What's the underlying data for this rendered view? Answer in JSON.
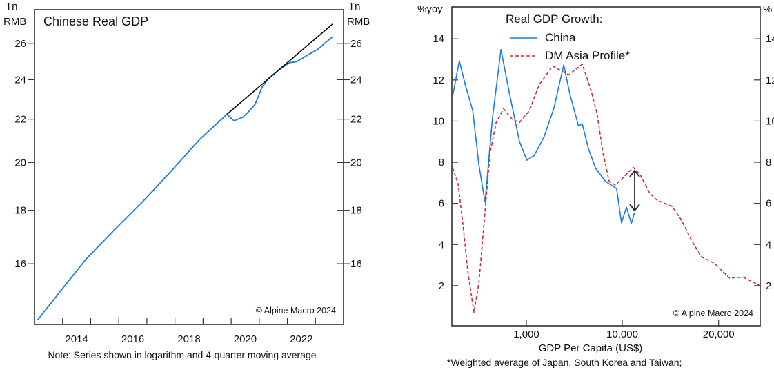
{
  "chart_data": [
    {
      "type": "line",
      "title": "Chinese Real GDP",
      "ylabel_left": [
        "Tn",
        "RMB"
      ],
      "ylabel_right": [
        "Tn",
        "RMB"
      ],
      "yscale": "log",
      "ylim": [
        14,
        28
      ],
      "xlim": [
        2013,
        2024
      ],
      "xticks": [
        2014,
        2015,
        2016,
        2017,
        2018,
        2019,
        2020,
        2021,
        2022,
        2023
      ],
      "xtick_labels": [
        "2014",
        "2016",
        "2018",
        "2020",
        "2022"
      ],
      "xtick_label_years": [
        2014,
        2016,
        2018,
        2020,
        2022
      ],
      "yticks": [
        16,
        18,
        20,
        22,
        24,
        26
      ],
      "ytick_labels": [
        "16",
        "18",
        "20",
        "22",
        "24",
        "26"
      ],
      "grid": false,
      "series": [
        {
          "color": "#1a7fd0",
          "style": "solid",
          "x": [
            2013.11,
            2013.86,
            2014.83,
            2015.88,
            2016.93,
            2017.9,
            2018.87,
            2019.85,
            2020.1,
            2020.41,
            2020.63,
            2020.85,
            2021.11,
            2021.33,
            2021.68,
            2022.08,
            2022.34,
            2022.65,
            2023.09,
            2023.35,
            2023.61
          ],
          "y": [
            14.14,
            14.99,
            16.16,
            17.28,
            18.44,
            19.67,
            21.03,
            22.24,
            21.92,
            22.09,
            22.38,
            22.73,
            23.63,
            24.06,
            24.5,
            24.92,
            24.97,
            25.27,
            25.67,
            26.03,
            26.38
          ]
        },
        {
          "color": "#000000",
          "style": "solid",
          "x": [
            2019.85,
            2023.61
          ],
          "y": [
            22.24,
            27.13
          ]
        }
      ],
      "annotation": "© Alpine Macro 2024",
      "note": "Note: Series shown in logarithm and 4-quarter moving average"
    },
    {
      "type": "line",
      "ylabel_left": "%yoy",
      "ylabel_right": "%",
      "xlabel": "GDP Per Capita (US$)",
      "xlim": [
        167,
        24260
      ],
      "ylim": [
        0.05,
        15.55
      ],
      "xticks": [
        1000,
        10000,
        20000
      ],
      "xtick_labels": [
        "1,000",
        "10,000",
        "20,000"
      ],
      "yticks": [
        2,
        4,
        6,
        8,
        10,
        12,
        14
      ],
      "ytick_labels": [
        "2",
        "4",
        "6",
        "8",
        "10",
        "12",
        "14"
      ],
      "grid": false,
      "legend": {
        "title": "Real GDP Growth:",
        "position": "top-center",
        "entries": [
          "China",
          "DM Asia Profile*"
        ]
      },
      "series": [
        {
          "name": "China",
          "color": "#1a7fd0",
          "style": "solid",
          "x": [
            170,
            200,
            231,
            276,
            320,
            371,
            443,
            544,
            669,
            847,
            1012,
            1208,
            1531,
            1938,
            2455,
            2844,
            3498,
            3823,
            4430,
            5287,
            6693,
            8730,
            9817,
            10434,
            10944,
            11250
          ],
          "y": [
            11.19,
            12.93,
            11.76,
            10.5,
            7.87,
            6.06,
            10.16,
            13.48,
            11.31,
            9.01,
            8.1,
            8.33,
            9.24,
            10.62,
            12.74,
            11.31,
            9.76,
            9.87,
            8.67,
            7.7,
            7.07,
            6.72,
            5.06,
            5.81,
            5.03,
            5.52
          ]
        },
        {
          "name": "DM Asia Profile*",
          "color": "#c0303a",
          "style": "dashed",
          "x": [
            170,
            194,
            218,
            245,
            284,
            320,
            360,
            418,
            484,
            578,
            710,
            847,
            1073,
            1359,
            1880,
            2761,
            3823,
            4700,
            5447,
            6310,
            7311,
            8472,
            10051,
            11148,
            11837,
            12857,
            13622,
            15153,
            16173,
            17194,
            18214,
            19490,
            21148,
            22551,
            24209
          ],
          "y": [
            7.75,
            6.95,
            5.0,
            2.71,
            0.7,
            2.14,
            4.89,
            8.44,
            9.93,
            10.6,
            10.1,
            9.93,
            10.5,
            11.76,
            12.68,
            12.25,
            12.77,
            11.54,
            10.39,
            8.44,
            7.07,
            6.89,
            7.24,
            7.75,
            7.41,
            6.49,
            6.15,
            5.86,
            5.17,
            4.2,
            3.4,
            3.11,
            2.37,
            2.42,
            2.02
          ]
        }
      ],
      "arrow": {
        "x": 11290,
        "from": 5.65,
        "to": 7.6,
        "color": "#222222"
      },
      "annotation": "© Alpine Macro 2024",
      "footnote": "*Weighted average of Japan, South Korea and Taiwan;"
    }
  ]
}
